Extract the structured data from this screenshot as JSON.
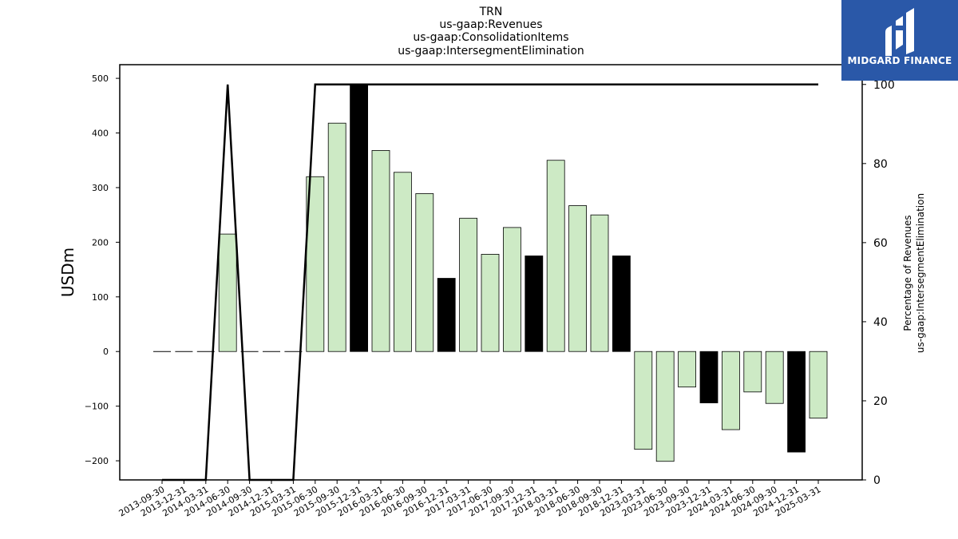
{
  "brand": {
    "name": "MIDGARD FINANCE",
    "bg_color": "#2a58a8"
  },
  "chart_data": {
    "type": "bar",
    "title_lines": [
      "TRN",
      "us-gaap:Revenues",
      "us-gaap:ConsolidationItems",
      "us-gaap:IntersegmentElimination"
    ],
    "ylabel": "USDm",
    "y2label_lines": [
      "Percentage of Revenues",
      "us-gaap:IntersegmentElimination"
    ],
    "ylim": [
      -235,
      525
    ],
    "y2lim": [
      0,
      105
    ],
    "yticks": [
      -200,
      -100,
      0,
      100,
      200,
      300,
      400,
      500
    ],
    "y2ticks": [
      0,
      20,
      40,
      60,
      80,
      100
    ],
    "categories": [
      "2013-09-30",
      "2013-12-31",
      "2014-03-31",
      "2014-06-30",
      "2014-09-30",
      "2014-12-31",
      "2015-03-31",
      "2015-06-30",
      "2015-09-30",
      "2015-12-31",
      "2016-03-31",
      "2016-06-30",
      "2016-09-30",
      "2016-12-31",
      "2017-03-31",
      "2017-06-30",
      "2017-09-30",
      "2017-12-31",
      "2018-03-31",
      "2018-06-30",
      "2018-09-30",
      "2018-12-31",
      "2023-03-31",
      "2023-06-30",
      "2023-09-30",
      "2023-12-31",
      "2024-03-31",
      "2024-06-30",
      "2024-09-30",
      "2024-12-31",
      "2025-03-31"
    ],
    "values": [
      null,
      null,
      null,
      215,
      null,
      null,
      null,
      320,
      418,
      490,
      368,
      328,
      289,
      134,
      244,
      178,
      227,
      175,
      350,
      267,
      250,
      175,
      -179,
      -201,
      -65,
      -94,
      -143,
      -74,
      -95,
      -184,
      -122
    ],
    "highlight": [
      false,
      false,
      false,
      false,
      false,
      false,
      false,
      false,
      false,
      true,
      false,
      false,
      false,
      true,
      false,
      false,
      false,
      true,
      false,
      false,
      false,
      true,
      false,
      false,
      false,
      true,
      false,
      false,
      false,
      true,
      false
    ],
    "zero_dashes": [
      true,
      true,
      true,
      false,
      true,
      true,
      true,
      false,
      false,
      false,
      false,
      false,
      false,
      false,
      false,
      false,
      false,
      false,
      false,
      false,
      false,
      false,
      false,
      false,
      false,
      false,
      false,
      false,
      false,
      false,
      false
    ],
    "percentage_line": [
      0,
      0,
      0,
      100,
      0,
      0,
      0,
      100,
      100,
      100,
      100,
      100,
      100,
      100,
      100,
      100,
      100,
      100,
      100,
      100,
      100,
      100,
      100,
      100,
      100,
      100,
      100,
      100,
      100,
      100,
      100
    ],
    "bar_color": "#cdeac5",
    "highlight_color": "#000000",
    "line_color": "#000000"
  }
}
